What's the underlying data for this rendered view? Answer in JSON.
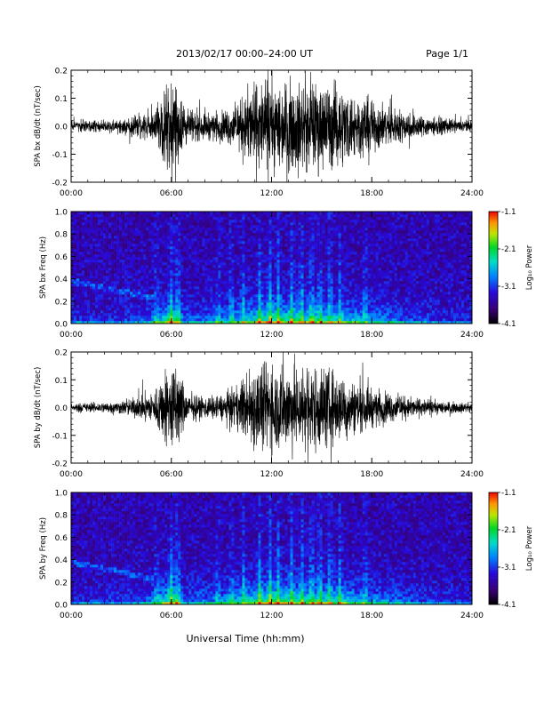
{
  "header": {
    "title": "2013/02/17  00:00–24:00 UT",
    "page": "Page 1/1"
  },
  "footer": {
    "xlabel": "Universal Time (hh:mm)"
  },
  "time_ticks": [
    "00:00",
    "06:00",
    "12:00",
    "18:00",
    "24:00"
  ],
  "colorbar": {
    "label": "Log₁₀ Power",
    "ticks": [
      "-1.1",
      "-2.1",
      "-3.1",
      "-4.1"
    ],
    "range": [
      -4.1,
      -1.1
    ]
  },
  "chart_data": [
    {
      "type": "line",
      "title": "",
      "ylabel": "SPA bx dB/dt (nT/sec)",
      "xlabel": "",
      "xlim": [
        0,
        24
      ],
      "ylim": [
        -0.2,
        0.2
      ],
      "yticks": [
        "0.2",
        "0.1",
        "0.0",
        "-0.1",
        "-0.2"
      ],
      "x_ticklabels": [
        "00:00",
        "06:00",
        "12:00",
        "18:00",
        "24:00"
      ],
      "envelope_hours": [
        0,
        1,
        2,
        3,
        4,
        5,
        5.8,
        6.3,
        7,
        8,
        9,
        10,
        10.8,
        11.5,
        12,
        13,
        14,
        15,
        16,
        17,
        18,
        19,
        20,
        21,
        22,
        23,
        24
      ],
      "envelope_amplitude": [
        0.025,
        0.028,
        0.03,
        0.035,
        0.05,
        0.08,
        0.2,
        0.2,
        0.07,
        0.06,
        0.07,
        0.1,
        0.2,
        0.2,
        0.2,
        0.2,
        0.2,
        0.2,
        0.19,
        0.15,
        0.12,
        0.09,
        0.07,
        0.05,
        0.04,
        0.03,
        0.025
      ]
    },
    {
      "type": "heatmap",
      "title": "",
      "ylabel": "SPA bx Freq (Hz)",
      "xlabel": "",
      "xlim": [
        0,
        24
      ],
      "ylim": [
        0,
        1.0
      ],
      "yticks": [
        "1.0",
        "0.8",
        "0.6",
        "0.4",
        "0.2",
        "0.0"
      ],
      "x_ticklabels": [
        "00:00",
        "06:00",
        "12:00",
        "18:00",
        "24:00"
      ],
      "value_label": "Log10 Power",
      "value_range": [
        -4.1,
        -1.1
      ]
    },
    {
      "type": "line",
      "title": "",
      "ylabel": "SPA by dB/dt (nT/sec)",
      "xlabel": "",
      "xlim": [
        0,
        24
      ],
      "ylim": [
        -0.2,
        0.2
      ],
      "yticks": [
        "0.2",
        "0.1",
        "0.0",
        "-0.1",
        "-0.2"
      ],
      "x_ticklabels": [
        "00:00",
        "06:00",
        "12:00",
        "18:00",
        "24:00"
      ],
      "envelope_hours": [
        0,
        1,
        2,
        3,
        4,
        5,
        5.8,
        6.3,
        7,
        8,
        9,
        10,
        10.8,
        11.5,
        12,
        13,
        14,
        15,
        16,
        17,
        18,
        19,
        20,
        21,
        22,
        23,
        24
      ],
      "envelope_amplitude": [
        0.02,
        0.022,
        0.025,
        0.03,
        0.05,
        0.08,
        0.2,
        0.2,
        0.06,
        0.05,
        0.06,
        0.1,
        0.2,
        0.2,
        0.2,
        0.2,
        0.2,
        0.2,
        0.16,
        0.12,
        0.09,
        0.07,
        0.05,
        0.04,
        0.03,
        0.025,
        0.02
      ]
    },
    {
      "type": "heatmap",
      "title": "",
      "ylabel": "SPA by Freq (Hz)",
      "xlabel": "",
      "xlim": [
        0,
        24
      ],
      "ylim": [
        0,
        1.0
      ],
      "yticks": [
        "1.0",
        "0.8",
        "0.6",
        "0.4",
        "0.2",
        "0.0"
      ],
      "x_ticklabels": [
        "00:00",
        "06:00",
        "12:00",
        "18:00",
        "24:00"
      ],
      "value_label": "Log10 Power",
      "value_range": [
        -4.1,
        -1.1
      ]
    }
  ]
}
